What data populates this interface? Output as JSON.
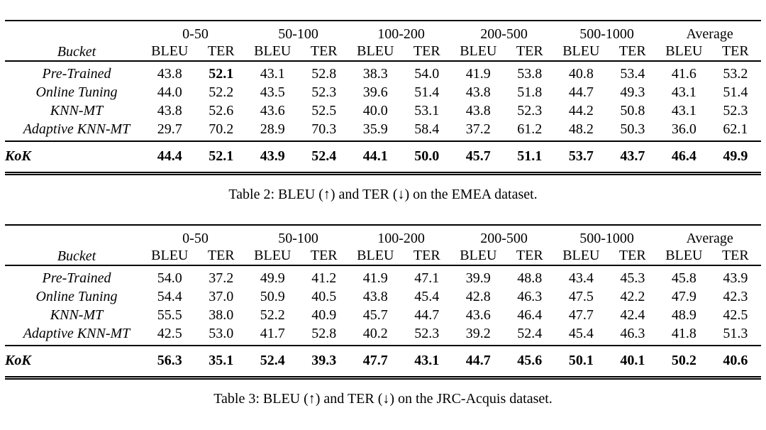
{
  "page": {
    "background_color": "#ffffff",
    "text_color": "#000000"
  },
  "tables": [
    {
      "caption": "Table 2: BLEU (↑) and TER (↓) on the EMEA dataset.",
      "corner_label": "Bucket",
      "group_headers": [
        "0-50",
        "50-100",
        "100-200",
        "200-500",
        "500-1000",
        "Average"
      ],
      "metric_headers": [
        "BLEU",
        "TER"
      ],
      "rows": [
        {
          "label": "Pre-Trained",
          "values": [
            "43.8",
            "52.1",
            "43.1",
            "52.8",
            "38.3",
            "54.0",
            "41.9",
            "53.8",
            "40.8",
            "53.4",
            "41.6",
            "53.2"
          ],
          "bold_indices": [
            1
          ]
        },
        {
          "label": "Online Tuning",
          "values": [
            "44.0",
            "52.2",
            "43.5",
            "52.3",
            "39.6",
            "51.4",
            "43.8",
            "51.8",
            "44.7",
            "49.3",
            "43.1",
            "51.4"
          ],
          "bold_indices": []
        },
        {
          "label": "KNN-MT",
          "values": [
            "43.8",
            "52.6",
            "43.6",
            "52.5",
            "40.0",
            "53.1",
            "43.8",
            "52.3",
            "44.2",
            "50.8",
            "43.1",
            "52.3"
          ],
          "bold_indices": []
        },
        {
          "label": "Adaptive KNN-MT",
          "values": [
            "29.7",
            "70.2",
            "28.9",
            "70.3",
            "35.9",
            "58.4",
            "37.2",
            "61.2",
            "48.2",
            "50.3",
            "36.0",
            "62.1"
          ],
          "bold_indices": []
        }
      ],
      "summary_row": {
        "label": "KoK",
        "values": [
          "44.4",
          "52.1",
          "43.9",
          "52.4",
          "44.1",
          "50.0",
          "45.7",
          "51.1",
          "53.7",
          "43.7",
          "46.4",
          "49.9"
        ]
      }
    },
    {
      "caption": "Table 3: BLEU (↑) and TER (↓) on the JRC-Acquis dataset.",
      "corner_label": "Bucket",
      "group_headers": [
        "0-50",
        "50-100",
        "100-200",
        "200-500",
        "500-1000",
        "Average"
      ],
      "metric_headers": [
        "BLEU",
        "TER"
      ],
      "rows": [
        {
          "label": "Pre-Trained",
          "values": [
            "54.0",
            "37.2",
            "49.9",
            "41.2",
            "41.9",
            "47.1",
            "39.9",
            "48.8",
            "43.4",
            "45.3",
            "45.8",
            "43.9"
          ],
          "bold_indices": []
        },
        {
          "label": "Online Tuning",
          "values": [
            "54.4",
            "37.0",
            "50.9",
            "40.5",
            "43.8",
            "45.4",
            "42.8",
            "46.3",
            "47.5",
            "42.2",
            "47.9",
            "42.3"
          ],
          "bold_indices": []
        },
        {
          "label": "KNN-MT",
          "values": [
            "55.5",
            "38.0",
            "52.2",
            "40.9",
            "45.7",
            "44.7",
            "43.6",
            "46.4",
            "47.7",
            "42.4",
            "48.9",
            "42.5"
          ],
          "bold_indices": []
        },
        {
          "label": "Adaptive KNN-MT",
          "values": [
            "42.5",
            "53.0",
            "41.7",
            "52.8",
            "40.2",
            "52.3",
            "39.2",
            "52.4",
            "45.4",
            "46.3",
            "41.8",
            "51.3"
          ],
          "bold_indices": []
        }
      ],
      "summary_row": {
        "label": "KoK",
        "values": [
          "56.3",
          "35.1",
          "52.4",
          "39.3",
          "47.7",
          "43.1",
          "44.7",
          "45.6",
          "50.1",
          "40.1",
          "50.2",
          "40.6"
        ]
      }
    }
  ]
}
